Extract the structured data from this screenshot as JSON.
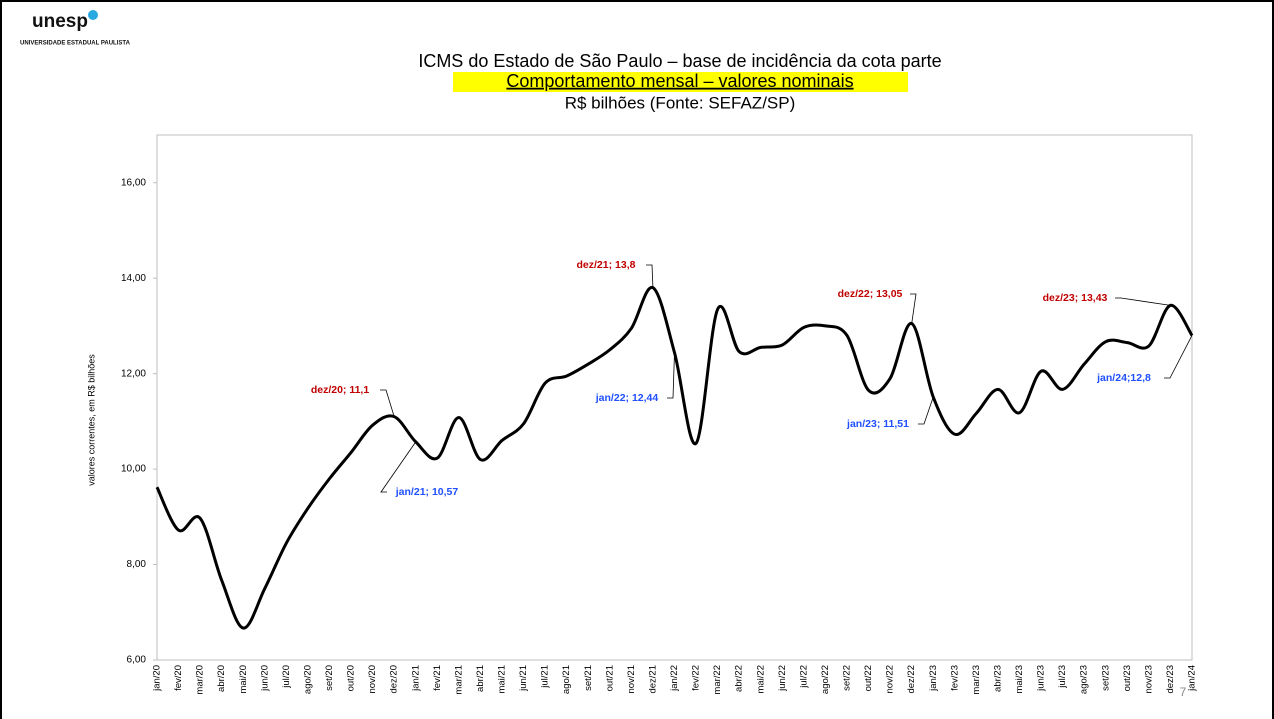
{
  "logo": {
    "name": "unesp",
    "subtitle": "UNIVERSIDADE ESTADUAL PAULISTA"
  },
  "page_number": "7",
  "chart_data": {
    "type": "line",
    "title": "ICMS do Estado de São Paulo – base de incidência da cota parte",
    "subtitle": "Comportamento mensal – valores nominais",
    "unit_note": "R$ bilhões (Fonte: SEFAZ/SP)",
    "ylabel": "valores correntes, em R$ bilhões",
    "categories": [
      "jan/20",
      "fev/20",
      "mar/20",
      "abr/20",
      "mai/20",
      "jun/20",
      "jul/20",
      "ago/20",
      "set/20",
      "out/20",
      "nov/20",
      "dez/20",
      "jan/21",
      "fev/21",
      "mar/21",
      "abr/21",
      "mai/21",
      "jun/21",
      "jul/21",
      "ago/21",
      "set/21",
      "out/21",
      "nov/21",
      "dez/21",
      "jan/22",
      "fev/22",
      "mar/22",
      "abr/22",
      "mai/22",
      "jun/22",
      "jul/22",
      "ago/22",
      "set/22",
      "out/22",
      "nov/22",
      "dez/22",
      "jan/23",
      "fev/23",
      "mar/23",
      "abr/23",
      "mai/23",
      "jun/23",
      "jul/23",
      "ago/23",
      "set/23",
      "out/23",
      "nov/23",
      "dez/23",
      "jan/24"
    ],
    "values": [
      9.62,
      8.72,
      8.97,
      7.67,
      6.67,
      7.5,
      8.45,
      9.18,
      9.8,
      10.35,
      10.92,
      11.1,
      10.57,
      10.23,
      11.08,
      10.2,
      10.6,
      10.95,
      11.8,
      11.95,
      12.2,
      12.5,
      12.95,
      13.8,
      12.44,
      10.54,
      13.35,
      12.46,
      12.55,
      12.6,
      12.97,
      13.0,
      12.8,
      11.65,
      11.9,
      13.05,
      11.51,
      10.73,
      11.17,
      11.67,
      11.18,
      12.05,
      11.67,
      12.2,
      12.67,
      12.65,
      12.58,
      13.43,
      12.8
    ],
    "value_labels": [
      null,
      null,
      null,
      null,
      null,
      null,
      null,
      null,
      null,
      null,
      null,
      "dez/20; 11,1",
      "jan/21; 10,57",
      null,
      null,
      null,
      null,
      null,
      null,
      null,
      null,
      null,
      null,
      "dez/21; 13,8",
      "jan/22; 12,44",
      null,
      null,
      null,
      null,
      null,
      null,
      null,
      null,
      null,
      null,
      "dez/22; 13,05",
      "jan/23; 11,51",
      null,
      null,
      null,
      null,
      null,
      null,
      null,
      null,
      null,
      null,
      "dez/23; 13,43",
      "jan/24;12,8"
    ],
    "color": "#000000",
    "ylim": [
      6,
      17
    ],
    "yticks": [
      {
        "value": 6,
        "label": "6,00"
      },
      {
        "value": 8,
        "label": "8,00"
      },
      {
        "value": 10,
        "label": "10,00"
      },
      {
        "value": 12,
        "label": "12,00"
      },
      {
        "value": 14,
        "label": "14,00"
      },
      {
        "value": 16,
        "label": "16,00"
      }
    ],
    "grid": false
  }
}
